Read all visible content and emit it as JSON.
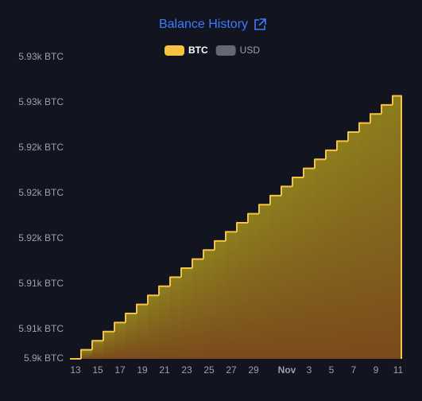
{
  "chart_data": {
    "type": "step-area",
    "title": "Balance History",
    "x": [
      "Oct 13",
      "Oct 14",
      "Oct 15",
      "Oct 16",
      "Oct 17",
      "Oct 18",
      "Oct 19",
      "Oct 20",
      "Oct 21",
      "Oct 22",
      "Oct 23",
      "Oct 24",
      "Oct 25",
      "Oct 26",
      "Oct 27",
      "Oct 28",
      "Oct 29",
      "Oct 30",
      "Oct 31",
      "Nov 1",
      "Nov 2",
      "Nov 3",
      "Nov 4",
      "Nov 5",
      "Nov 6",
      "Nov 7",
      "Nov 8",
      "Nov 9",
      "Nov 10",
      "Nov 11"
    ],
    "series": [
      {
        "name": "BTC",
        "color": "#f5c542",
        "hidden": false,
        "values": [
          5905.4,
          5906.2,
          5907.0,
          5907.8,
          5908.6,
          5909.4,
          5910.2,
          5911.0,
          5911.8,
          5912.6,
          5913.4,
          5914.2,
          5915.0,
          5915.8,
          5916.6,
          5917.4,
          5918.2,
          5919.0,
          5919.8,
          5920.6,
          5921.4,
          5922.2,
          5923.0,
          5923.8,
          5924.6,
          5925.4,
          5926.2,
          5927.0,
          5927.8,
          5928.6
        ]
      },
      {
        "name": "USD",
        "color": "#7b7d84",
        "hidden": true
      }
    ],
    "ylim": [
      5905.4,
      5932
    ],
    "yticks": [
      {
        "value": 5905.4,
        "label": "5.9k BTC"
      },
      {
        "value": 5908,
        "label": "5.91k BTC"
      },
      {
        "value": 5912,
        "label": "5.91k BTC"
      },
      {
        "value": 5916,
        "label": "5.92k BTC"
      },
      {
        "value": 5920,
        "label": "5.92k BTC"
      },
      {
        "value": 5924,
        "label": "5.92k BTC"
      },
      {
        "value": 5928,
        "label": "5.93k BTC"
      },
      {
        "value": 5932,
        "label": "5.93k BTC"
      }
    ],
    "xticks": [
      {
        "value": "Oct 13",
        "label": "13"
      },
      {
        "value": "Oct 15",
        "label": "15"
      },
      {
        "value": "Oct 17",
        "label": "17"
      },
      {
        "value": "Oct 19",
        "label": "19"
      },
      {
        "value": "Oct 21",
        "label": "21"
      },
      {
        "value": "Oct 23",
        "label": "23"
      },
      {
        "value": "Oct 25",
        "label": "25"
      },
      {
        "value": "Oct 27",
        "label": "27"
      },
      {
        "value": "Oct 29",
        "label": "29"
      },
      {
        "value": "Nov 1",
        "label": "Nov"
      },
      {
        "value": "Nov 3",
        "label": "3"
      },
      {
        "value": "Nov 5",
        "label": "5"
      },
      {
        "value": "Nov 7",
        "label": "7"
      },
      {
        "value": "Nov 9",
        "label": "9"
      },
      {
        "value": "Nov 11",
        "label": "11"
      }
    ]
  }
}
